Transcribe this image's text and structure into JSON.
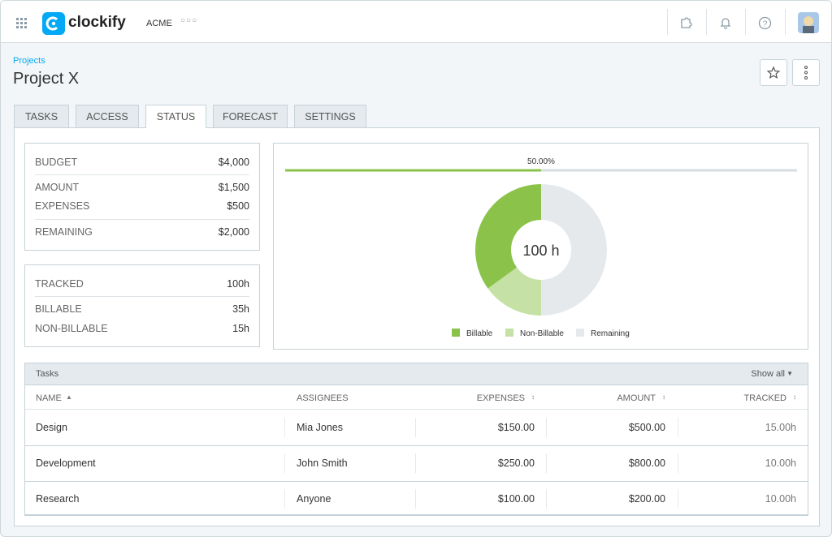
{
  "header": {
    "brand": "clockify",
    "workspace": "ACME"
  },
  "breadcrumb": "Projects",
  "title": "Project X",
  "tabs": [
    "TASKS",
    "ACCESS",
    "STATUS",
    "FORECAST",
    "SETTINGS"
  ],
  "active_tab": "STATUS",
  "budget": {
    "rows": [
      [
        "BUDGET",
        "$4,000"
      ],
      [
        "AMOUNT",
        "$1,500"
      ],
      [
        "EXPENSES",
        "$500"
      ],
      [
        "REMAINING",
        "$2,000"
      ]
    ]
  },
  "tracked": {
    "rows": [
      [
        "TRACKED",
        "100h"
      ],
      [
        "BILLABLE",
        "35h"
      ],
      [
        "NON-BILLABLE",
        "15h"
      ]
    ]
  },
  "progress": {
    "label": "50.00%",
    "value": 50
  },
  "chart_data": {
    "type": "donut",
    "center_label": "100 h",
    "series": [
      {
        "name": "Billable",
        "color": "#8bc34a",
        "value": 35
      },
      {
        "name": "Non-Billable",
        "color": "#c5e1a5",
        "value": 15
      },
      {
        "name": "Remaining",
        "color": "#e6e9ec",
        "value": 50
      }
    ]
  },
  "tasks": {
    "title": "Tasks",
    "show_all": "Show all",
    "columns": [
      "NAME",
      "ASSIGNEES",
      "EXPENSES",
      "AMOUNT",
      "TRACKED"
    ],
    "rows": [
      [
        "Design",
        "Mia Jones",
        "$150.00",
        "$500.00",
        "15.00h"
      ],
      [
        "Development",
        "John Smith",
        "$250.00",
        "$800.00",
        "10.00h"
      ],
      [
        "Research",
        "Anyone",
        "$100.00",
        "$200.00",
        "10.00h"
      ]
    ]
  }
}
